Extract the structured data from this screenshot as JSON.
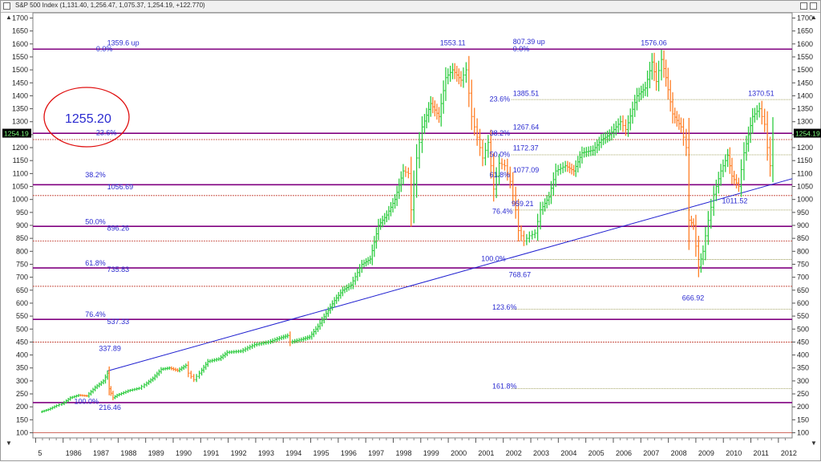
{
  "window": {
    "title": "S&P 500 Index (1,131.40, 1,256.47, 1,075.37, 1,254.19, +122.770)"
  },
  "colors": {
    "fib_main": "#800080",
    "fib_minor": "#8b8b3a",
    "red_ref": "#c0392b",
    "trend": "#1f1fd0",
    "up": "#2ecc40",
    "down": "#ff7f27",
    "label": "#2a2ad0",
    "price_box": "#000000",
    "price_text": "#7dff7d",
    "circle": "#e01010"
  },
  "highlight": {
    "label": "1255.20"
  },
  "price_label": "1254.19",
  "chart_data": {
    "type": "bar",
    "ylim": [
      80,
      1720
    ],
    "y_ticks": [
      100,
      150,
      200,
      250,
      300,
      350,
      400,
      450,
      500,
      550,
      600,
      650,
      700,
      750,
      800,
      850,
      900,
      950,
      1000,
      1050,
      1100,
      1150,
      1200,
      1250,
      1300,
      1350,
      1400,
      1450,
      1500,
      1550,
      1600,
      1650,
      1700
    ],
    "x_tick_labels": [
      "5",
      "1986",
      "1987",
      "1988",
      "1989",
      "1990",
      "1991",
      "1992",
      "1993",
      "1994",
      "1995",
      "1996",
      "1997",
      "1998",
      "1999",
      "2000",
      "2001",
      "2002",
      "2003",
      "2004",
      "2005",
      "2006",
      "2007",
      "2008",
      "2009",
      "2010",
      "2011",
      "2012"
    ],
    "x_tick_years": [
      1985,
      1986,
      1987,
      1988,
      1989,
      1990,
      1991,
      1992,
      1993,
      1994,
      1995,
      1996,
      1997,
      1998,
      1999,
      2000,
      2001,
      2002,
      2003,
      2004,
      2005,
      2006,
      2007,
      2008,
      2009,
      2010,
      2011,
      2012
    ],
    "x_range": [
      1984.9,
      2012.5
    ],
    "retracement_levels": [
      1580,
      1255.2,
      1056.69,
      896.26,
      735.83,
      537.33,
      216.46
    ],
    "secondary_levels": [
      1385.51,
      1172.37,
      959.21,
      768.67,
      577,
      270
    ],
    "reference_lines": [
      1231,
      1015,
      840,
      665,
      450,
      100
    ],
    "trendline": [
      [
        1987.6,
        337.89
      ],
      [
        2012.5,
        1080
      ]
    ],
    "monthly_closes": [
      [
        1985.2,
        180
      ],
      [
        1985.5,
        190
      ],
      [
        1985.8,
        205
      ],
      [
        1986.0,
        212
      ],
      [
        1986.3,
        235
      ],
      [
        1986.6,
        245
      ],
      [
        1986.9,
        242
      ],
      [
        1987.2,
        275
      ],
      [
        1987.5,
        300
      ],
      [
        1987.65,
        330
      ],
      [
        1987.7,
        270
      ],
      [
        1987.85,
        235
      ],
      [
        1988.0,
        245
      ],
      [
        1988.4,
        262
      ],
      [
        1988.8,
        272
      ],
      [
        1989.0,
        285
      ],
      [
        1989.3,
        310
      ],
      [
        1989.6,
        345
      ],
      [
        1989.9,
        350
      ],
      [
        1990.2,
        340
      ],
      [
        1990.5,
        360
      ],
      [
        1990.6,
        330
      ],
      [
        1990.8,
        305
      ],
      [
        1991.0,
        330
      ],
      [
        1991.3,
        375
      ],
      [
        1991.7,
        385
      ],
      [
        1992.0,
        410
      ],
      [
        1992.5,
        415
      ],
      [
        1993.0,
        440
      ],
      [
        1993.5,
        450
      ],
      [
        1993.9,
        465
      ],
      [
        1994.2,
        475
      ],
      [
        1994.3,
        450
      ],
      [
        1994.7,
        460
      ],
      [
        1995.0,
        470
      ],
      [
        1995.3,
        510
      ],
      [
        1995.6,
        560
      ],
      [
        1995.9,
        610
      ],
      [
        1996.2,
        650
      ],
      [
        1996.5,
        670
      ],
      [
        1996.9,
        750
      ],
      [
        1997.2,
        770
      ],
      [
        1997.5,
        900
      ],
      [
        1997.8,
        940
      ],
      [
        1998.1,
        1000
      ],
      [
        1998.4,
        1110
      ],
      [
        1998.6,
        1100
      ],
      [
        1998.7,
        960
      ],
      [
        1998.9,
        1160
      ],
      [
        1999.1,
        1280
      ],
      [
        1999.4,
        1370
      ],
      [
        1999.7,
        1320
      ],
      [
        1999.95,
        1470
      ],
      [
        2000.2,
        1500
      ],
      [
        2000.5,
        1460
      ],
      [
        2000.7,
        1500
      ],
      [
        2000.9,
        1320
      ],
      [
        2001.1,
        1240
      ],
      [
        2001.3,
        1160
      ],
      [
        2001.5,
        1220
      ],
      [
        2001.7,
        1040
      ],
      [
        2001.9,
        1140
      ],
      [
        2002.1,
        1130
      ],
      [
        2002.3,
        1070
      ],
      [
        2002.5,
        960
      ],
      [
        2002.6,
        880
      ],
      [
        2002.8,
        840
      ],
      [
        2003.0,
        860
      ],
      [
        2003.2,
        870
      ],
      [
        2003.4,
        960
      ],
      [
        2003.7,
        1010
      ],
      [
        2003.95,
        1110
      ],
      [
        2004.3,
        1130
      ],
      [
        2004.6,
        1110
      ],
      [
        2004.9,
        1180
      ],
      [
        2005.3,
        1190
      ],
      [
        2005.6,
        1230
      ],
      [
        2005.9,
        1250
      ],
      [
        2006.3,
        1300
      ],
      [
        2006.5,
        1270
      ],
      [
        2006.9,
        1400
      ],
      [
        2007.2,
        1430
      ],
      [
        2007.45,
        1530
      ],
      [
        2007.6,
        1455
      ],
      [
        2007.8,
        1540
      ],
      [
        2007.95,
        1470
      ],
      [
        2008.2,
        1330
      ],
      [
        2008.5,
        1280
      ],
      [
        2008.7,
        1200
      ],
      [
        2008.8,
        920
      ],
      [
        2008.95,
        900
      ],
      [
        2009.15,
        740
      ],
      [
        2009.3,
        800
      ],
      [
        2009.5,
        920
      ],
      [
        2009.7,
        1020
      ],
      [
        2009.95,
        1110
      ],
      [
        2010.2,
        1170
      ],
      [
        2010.35,
        1090
      ],
      [
        2010.6,
        1050
      ],
      [
        2010.8,
        1180
      ],
      [
        2010.95,
        1250
      ],
      [
        2011.1,
        1320
      ],
      [
        2011.35,
        1350
      ],
      [
        2011.55,
        1290
      ],
      [
        2011.65,
        1200
      ],
      [
        2011.75,
        1130
      ],
      [
        2011.85,
        1254
      ]
    ],
    "annotations": [
      {
        "text": "1359.6 up",
        "x": 1987.6,
        "y": 1595
      },
      {
        "text": "0.0%",
        "x": 1987.2,
        "y": 1572
      },
      {
        "text": "23.6%",
        "x": 1987.2,
        "y": 1248
      },
      {
        "text": "38.2%",
        "x": 1986.8,
        "y": 1085
      },
      {
        "text": "1056.69",
        "x": 1987.6,
        "y": 1040
      },
      {
        "text": "50.0%",
        "x": 1986.8,
        "y": 905
      },
      {
        "text": "896.26",
        "x": 1987.6,
        "y": 880
      },
      {
        "text": "61.8%",
        "x": 1986.8,
        "y": 745
      },
      {
        "text": "735.83",
        "x": 1987.6,
        "y": 720
      },
      {
        "text": "76.4%",
        "x": 1986.8,
        "y": 547
      },
      {
        "text": "537.33",
        "x": 1987.6,
        "y": 520
      },
      {
        "text": "337.89",
        "x": 1987.3,
        "y": 415
      },
      {
        "text": "100.0%",
        "x": 1986.4,
        "y": 212
      },
      {
        "text": "216.46",
        "x": 1987.3,
        "y": 188
      },
      {
        "text": "1553.11",
        "x": 1999.7,
        "y": 1595
      },
      {
        "text": "807.39 up",
        "x": 2002.35,
        "y": 1600
      },
      {
        "text": "0.0%",
        "x": 2002.35,
        "y": 1572
      },
      {
        "text": "23.6%",
        "x": 2001.5,
        "y": 1378
      },
      {
        "text": "1385.51",
        "x": 2002.35,
        "y": 1400
      },
      {
        "text": "38.2%",
        "x": 2001.5,
        "y": 1247
      },
      {
        "text": "1267.64",
        "x": 2002.35,
        "y": 1270
      },
      {
        "text": "50.0%",
        "x": 2001.5,
        "y": 1165
      },
      {
        "text": "1172.37",
        "x": 2002.35,
        "y": 1190
      },
      {
        "text": "61.8%",
        "x": 2001.5,
        "y": 1085
      },
      {
        "text": "1077.09",
        "x": 2002.35,
        "y": 1105
      },
      {
        "text": "76.4%",
        "x": 2001.6,
        "y": 945
      },
      {
        "text": "959.21",
        "x": 2002.3,
        "y": 975
      },
      {
        "text": "100.0%",
        "x": 2001.2,
        "y": 762
      },
      {
        "text": "768.67",
        "x": 2002.2,
        "y": 700
      },
      {
        "text": "123.6%",
        "x": 2001.6,
        "y": 575
      },
      {
        "text": "161.8%",
        "x": 2001.6,
        "y": 270
      },
      {
        "text": "1576.06",
        "x": 2007.0,
        "y": 1595
      },
      {
        "text": "1370.51",
        "x": 2010.9,
        "y": 1400
      },
      {
        "text": "666.92",
        "x": 2008.5,
        "y": 610
      },
      {
        "text": "1011.52",
        "x": 2009.95,
        "y": 985
      }
    ]
  }
}
